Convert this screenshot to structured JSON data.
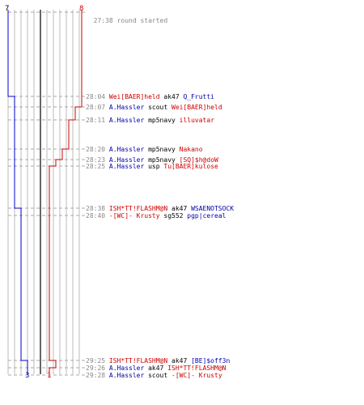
{
  "colors": {
    "blue": "#0000cc",
    "red": "#cc0000",
    "grid": "#bbbbbb",
    "dash": "#aaaaaa",
    "dark": "#666666"
  },
  "scores": {
    "blue_start": "7",
    "red_start": "8",
    "blue_end": "3",
    "red_end": "1"
  },
  "round_start": {
    "time": "27:38",
    "text": "round started"
  },
  "events": [
    {
      "time": "28:04",
      "killer": "Wei[BAER]held",
      "kteam": "red",
      "weapon": "ak47",
      "victim": "Q_Frutti",
      "vteam": "blue"
    },
    {
      "time": "28:07",
      "killer": "A.Hassler",
      "kteam": "blue",
      "weapon": "scout",
      "victim": "Wei[BAER]held",
      "vteam": "red"
    },
    {
      "time": "28:11",
      "killer": "A.Hassler",
      "kteam": "blue",
      "weapon": "mp5navy",
      "victim": "illuvatar",
      "vteam": "red"
    },
    {
      "time": "28:20",
      "killer": "A.Hassler",
      "kteam": "blue",
      "weapon": "mp5navy",
      "victim": "Nakano",
      "vteam": "red"
    },
    {
      "time": "28:23",
      "killer": "A.Hassler",
      "kteam": "blue",
      "weapon": "mp5navy",
      "victim": "[SQ]$h@doW",
      "vteam": "red"
    },
    {
      "time": "28:25",
      "killer": "A.Hassler",
      "kteam": "blue",
      "weapon": "usp",
      "victim": "Tu[BAER]kulose",
      "vteam": "red"
    },
    {
      "time": "28:38",
      "killer": "ISH*TT!FLASHM@N",
      "kteam": "red",
      "weapon": "ak47",
      "victim": "WSAENOTSOCK",
      "vteam": "blue"
    },
    {
      "time": "28:40",
      "killer": "-[WC]- Krusty",
      "kteam": "red",
      "weapon": "sg552",
      "victim": "pgp|cereal",
      "vteam": "blue"
    },
    {
      "time": "29:25",
      "killer": "ISH*TT!FLASHM@N",
      "kteam": "red",
      "weapon": "ak47",
      "victim": "[BE]$off3n",
      "vteam": "blue"
    },
    {
      "time": "29:26",
      "killer": "A.Hassler",
      "kteam": "blue",
      "weapon": "ak47",
      "victim": "ISH*TT!FLASHM@N",
      "vteam": "red"
    },
    {
      "time": "29:28",
      "killer": "A.Hassler",
      "kteam": "blue",
      "weapon": "scout",
      "victim": "-[WC]- Krusty",
      "vteam": "red"
    }
  ]
}
